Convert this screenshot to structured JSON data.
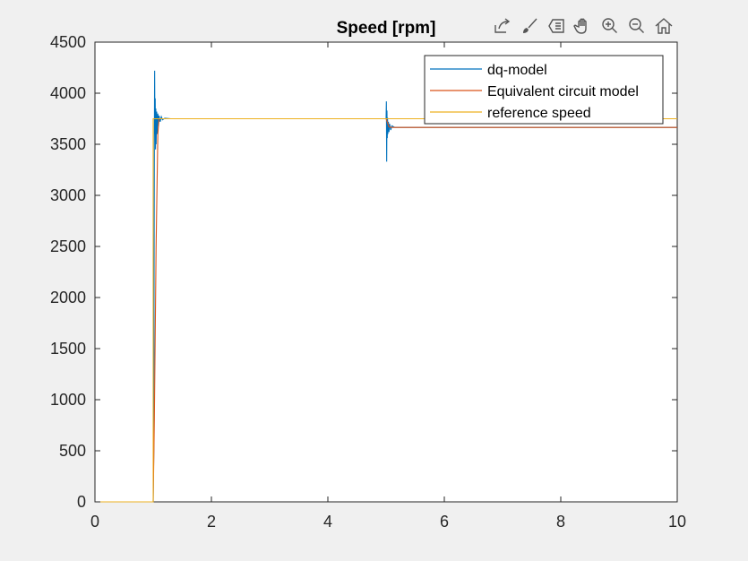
{
  "window": {
    "toolbar_icons": [
      "export-icon",
      "brush-icon",
      "data-tip-icon",
      "pan-hand-icon",
      "zoom-in-icon",
      "zoom-out-icon",
      "home-icon"
    ]
  },
  "chart_data": {
    "type": "line",
    "title": "Speed [rpm]",
    "xlabel": "",
    "ylabel": "",
    "xlim": [
      0,
      10
    ],
    "ylim": [
      0,
      4500
    ],
    "xticks": [
      0,
      2,
      4,
      6,
      8,
      10
    ],
    "yticks": [
      0,
      500,
      1000,
      1500,
      2000,
      2500,
      3000,
      3500,
      4000,
      4500
    ],
    "grid": false,
    "legend_position": "top-right",
    "series": [
      {
        "name": "dq-model",
        "color": "#0072bd",
        "x": [
          0,
          1.0,
          1.01,
          1.015,
          1.02,
          1.025,
          1.03,
          1.035,
          1.04,
          1.045,
          1.05,
          1.06,
          1.07,
          1.08,
          1.09,
          1.1,
          1.12,
          1.14,
          1.16,
          1.2,
          1.3,
          5.0,
          5.005,
          5.01,
          5.015,
          5.02,
          5.025,
          5.03,
          5.04,
          5.05,
          5.06,
          5.08,
          5.1,
          5.15,
          10
        ],
        "y": [
          0,
          0,
          500,
          2000,
          3500,
          4220,
          3600,
          3950,
          3450,
          3850,
          3500,
          3820,
          3600,
          3800,
          3680,
          3780,
          3720,
          3770,
          3740,
          3755,
          3750,
          3750,
          3920,
          3330,
          3830,
          3560,
          3760,
          3600,
          3720,
          3620,
          3700,
          3640,
          3680,
          3665,
          3665
        ]
      },
      {
        "name": "Equivalent circuit model",
        "color": "#d95319",
        "x": [
          0,
          1.0,
          1.02,
          1.05,
          1.08,
          1.1,
          1.2,
          5.0,
          5.05,
          5.1,
          10
        ],
        "y": [
          0,
          0,
          800,
          2500,
          3600,
          3750,
          3750,
          3750,
          3670,
          3665,
          3665
        ]
      },
      {
        "name": "reference speed",
        "color": "#edb120",
        "x": [
          0,
          1.0,
          1.0,
          10
        ],
        "y": [
          0,
          0,
          3750,
          3750
        ]
      }
    ]
  }
}
